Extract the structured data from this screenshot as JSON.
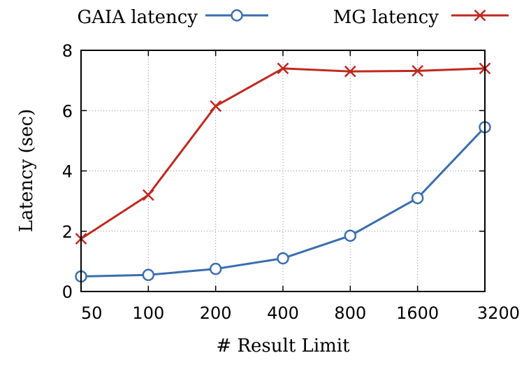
{
  "chart_data": {
    "type": "line",
    "title": "",
    "xlabel": "# Result Limit",
    "ylabel": "Latency (sec)",
    "categories": [
      "50",
      "100",
      "200",
      "400",
      "800",
      "1600",
      "3200"
    ],
    "ylim": [
      0,
      8
    ],
    "yticks": [
      "0",
      "2",
      "4",
      "6",
      "8"
    ],
    "grid": true,
    "legend_position": "top",
    "series": [
      {
        "name": "GAIA latency",
        "color": "#3a6eb0",
        "marker": "circle",
        "values": [
          0.5,
          0.55,
          0.75,
          1.1,
          1.85,
          3.1,
          5.45
        ]
      },
      {
        "name": "MG latency",
        "color": "#c0281e",
        "marker": "x",
        "values": [
          1.75,
          3.2,
          6.15,
          7.4,
          7.3,
          7.32,
          7.4
        ]
      }
    ]
  }
}
